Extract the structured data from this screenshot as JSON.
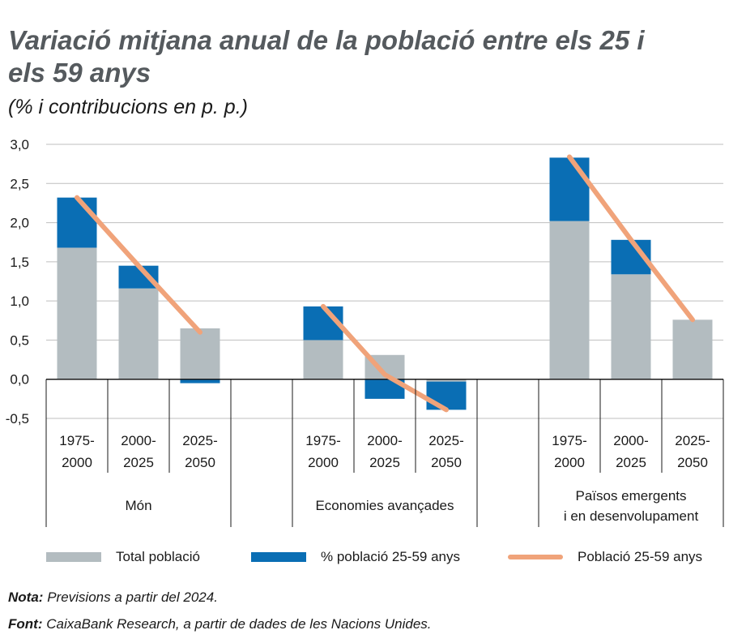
{
  "title": "Variació mitjana anual de la població entre els 25 i els 59 anys",
  "subtitle": "(% i contribucions en p. p.)",
  "legend": {
    "total": "Total població",
    "share": "% població 25-59 anys",
    "line": "Població 25-59 anys"
  },
  "colors": {
    "total": "#b3bcc0",
    "share": "#0a6eb4",
    "line": "#f0a37a",
    "grid": "#bfbfbf",
    "title": "#555a5e"
  },
  "notes": {
    "nota_label": "Nota:",
    "nota_text": "Previsions a partir del 2024.",
    "font_label": "Font:",
    "font_text": "CaixaBank Research, a partir de dades de les Nacions Unides."
  },
  "chart_data": {
    "type": "bar",
    "stacked": true,
    "ylim": [
      -0.5,
      3.0
    ],
    "yticks": [
      "3,0",
      "2,5",
      "2,0",
      "1,5",
      "1,0",
      "0,5",
      "0,0",
      "-0,5"
    ],
    "ytick_values": [
      3.0,
      2.5,
      2.0,
      1.5,
      1.0,
      0.5,
      0.0,
      -0.5
    ],
    "grid": true,
    "legend_position": "bottom",
    "groups": [
      {
        "name": "Món",
        "name_lines": [
          "Món"
        ],
        "periods": [
          [
            "1975-",
            "2000"
          ],
          [
            "2000-",
            "2025"
          ],
          [
            "2025-",
            "2050"
          ]
        ]
      },
      {
        "name": "Economies avançades",
        "name_lines": [
          "Economies avançades"
        ],
        "periods": [
          [
            "1975-",
            "2000"
          ],
          [
            "2000-",
            "2025"
          ],
          [
            "2025-",
            "2050"
          ]
        ]
      },
      {
        "name": "Països emergents i en desenvolupament",
        "name_lines": [
          "Països emergents",
          "i en desenvolupament"
        ],
        "periods": [
          [
            "1975-",
            "2000"
          ],
          [
            "2000-",
            "2025"
          ],
          [
            "2025-",
            "2050"
          ]
        ]
      }
    ],
    "series": [
      {
        "name": "Total població",
        "kind": "bar",
        "values": [
          [
            1.68,
            1.16,
            0.65
          ],
          [
            0.5,
            0.31,
            -0.03
          ],
          [
            2.02,
            1.34,
            0.76
          ]
        ]
      },
      {
        "name": "% població 25-59 anys",
        "kind": "bar",
        "values": [
          [
            0.64,
            0.29,
            -0.05
          ],
          [
            0.43,
            -0.25,
            -0.36
          ],
          [
            0.81,
            0.44,
            0.0
          ]
        ]
      },
      {
        "name": "Població 25-59 anys",
        "kind": "line",
        "values": [
          [
            2.32,
            1.45,
            0.6
          ],
          [
            0.93,
            0.06,
            -0.39
          ],
          [
            2.84,
            1.78,
            0.76
          ]
        ]
      }
    ]
  }
}
